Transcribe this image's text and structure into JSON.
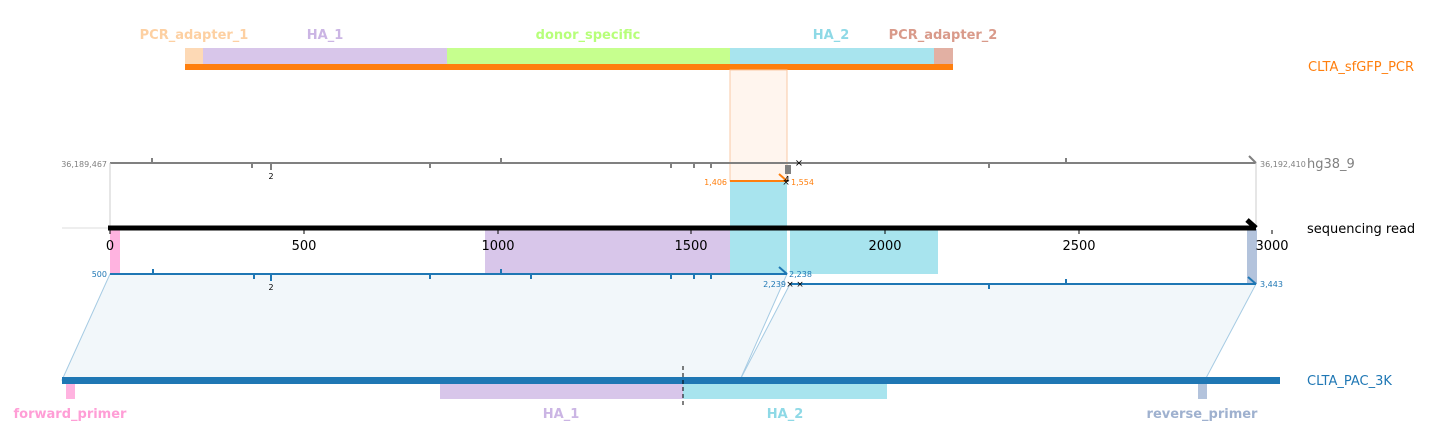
{
  "colors": {
    "pcr_track": "#ff7f0e",
    "ref_track": "#808080",
    "read_track": "#000000",
    "target_track": "#1f77b4",
    "pcr_adapter_1": "#fdd9b5",
    "ha_1": "#d8c6ea",
    "donor_specific": "#c6ff8e",
    "ha_2": "#a8e4ee",
    "pcr_adapter_2": "#e2b0a3",
    "forward_primer": "#ffb3e0",
    "reverse_primer": "#b3c3dc"
  },
  "tracks": {
    "pcr": "CLTA_sfGFP_PCR",
    "ref": "hg38_9",
    "read": "sequencing read",
    "target": "CLTA_PAC_3K"
  },
  "top_features": [
    {
      "label": "PCR_adapter_1",
      "color_key": "pcr_adapter_1"
    },
    {
      "label": "HA_1",
      "color_key": "ha_1"
    },
    {
      "label": "donor_specific",
      "color_key": "donor_specific"
    },
    {
      "label": "HA_2",
      "color_key": "ha_2"
    },
    {
      "label": "PCR_adapter_2",
      "color_key": "pcr_adapter_2"
    }
  ],
  "bottom_features": [
    {
      "label": "forward_primer",
      "color_key": "forward_primer"
    },
    {
      "label": "HA_1",
      "color_key": "ha_1"
    },
    {
      "label": "HA_2",
      "color_key": "ha_2"
    },
    {
      "label": "reverse_primer",
      "color_key": "reverse_primer"
    }
  ],
  "read_axis": {
    "ticks": [
      "0",
      "500",
      "1000",
      "1500",
      "2000",
      "2500",
      "3000"
    ]
  },
  "ref_coords": {
    "start": "36,189,467",
    "end": "36,192,410",
    "mark": "2"
  },
  "pcr_coords": {
    "start": "1,406",
    "end": "1,554",
    "mark": "4"
  },
  "target_coords": {
    "start": "500",
    "mid_a": "2,238",
    "mid_b": "2,239",
    "end": "3,443",
    "mark": "2"
  }
}
